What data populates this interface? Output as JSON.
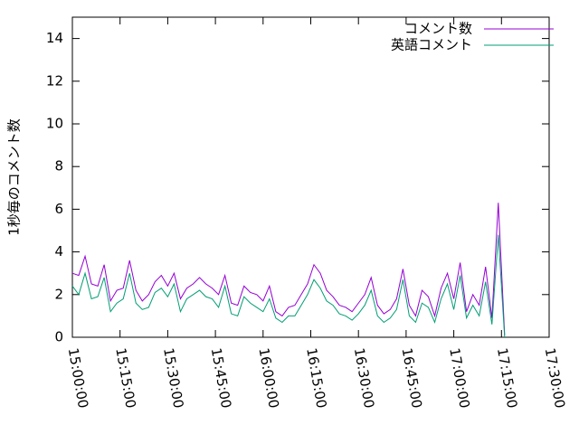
{
  "chart_data": {
    "type": "line",
    "ylabel": "1秒毎のコメント数",
    "x": [
      "15:00:00",
      "15:02:00",
      "15:04:00",
      "15:06:00",
      "15:08:00",
      "15:10:00",
      "15:12:00",
      "15:14:00",
      "15:16:00",
      "15:18:00",
      "15:20:00",
      "15:22:00",
      "15:24:00",
      "15:26:00",
      "15:28:00",
      "15:30:00",
      "15:32:00",
      "15:34:00",
      "15:36:00",
      "15:38:00",
      "15:40:00",
      "15:42:00",
      "15:44:00",
      "15:46:00",
      "15:48:00",
      "15:50:00",
      "15:52:00",
      "15:54:00",
      "15:56:00",
      "15:58:00",
      "16:00:00",
      "16:02:00",
      "16:04:00",
      "16:06:00",
      "16:08:00",
      "16:10:00",
      "16:12:00",
      "16:14:00",
      "16:16:00",
      "16:18:00",
      "16:20:00",
      "16:22:00",
      "16:24:00",
      "16:26:00",
      "16:28:00",
      "16:30:00",
      "16:32:00",
      "16:34:00",
      "16:36:00",
      "16:38:00",
      "16:40:00",
      "16:42:00",
      "16:44:00",
      "16:46:00",
      "16:48:00",
      "16:50:00",
      "16:52:00",
      "16:54:00",
      "16:56:00",
      "16:58:00",
      "17:00:00",
      "17:02:00",
      "17:04:00",
      "17:06:00",
      "17:08:00",
      "17:10:00",
      "17:12:00",
      "17:14:00",
      "17:16:00"
    ],
    "series": [
      {
        "name": "コメント数",
        "color": "#9400d3",
        "values": [
          3.0,
          2.9,
          3.8,
          2.5,
          2.4,
          3.4,
          1.7,
          2.2,
          2.3,
          3.6,
          2.2,
          1.7,
          2.0,
          2.6,
          2.9,
          2.4,
          3.0,
          1.8,
          2.3,
          2.5,
          2.8,
          2.5,
          2.3,
          2.0,
          2.9,
          1.6,
          1.5,
          2.4,
          2.1,
          2.0,
          1.7,
          2.4,
          1.2,
          1.0,
          1.4,
          1.5,
          2.0,
          2.5,
          3.4,
          3.0,
          2.2,
          1.9,
          1.5,
          1.4,
          1.2,
          1.6,
          2.0,
          2.8,
          1.5,
          1.1,
          1.3,
          1.8,
          3.2,
          1.5,
          1.0,
          2.2,
          1.9,
          1.0,
          2.3,
          3.0,
          1.8,
          3.5,
          1.2,
          2.0,
          1.5,
          3.3,
          0.9,
          6.3,
          0.1
        ]
      },
      {
        "name": "英語コメント",
        "color": "#009e73",
        "values": [
          2.4,
          2.0,
          3.0,
          1.8,
          1.9,
          2.8,
          1.2,
          1.6,
          1.8,
          3.0,
          1.6,
          1.3,
          1.4,
          2.1,
          2.3,
          1.9,
          2.5,
          1.2,
          1.8,
          2.0,
          2.2,
          1.9,
          1.8,
          1.4,
          2.4,
          1.1,
          1.0,
          1.9,
          1.6,
          1.4,
          1.2,
          1.8,
          0.9,
          0.7,
          1.0,
          1.0,
          1.5,
          2.0,
          2.7,
          2.3,
          1.7,
          1.5,
          1.1,
          1.0,
          0.8,
          1.1,
          1.5,
          2.2,
          1.0,
          0.7,
          0.9,
          1.3,
          2.7,
          1.0,
          0.7,
          1.6,
          1.4,
          0.7,
          1.8,
          2.5,
          1.3,
          2.9,
          0.9,
          1.5,
          1.0,
          2.6,
          0.6,
          4.8,
          0.0
        ]
      }
    ],
    "xlim": [
      "15:00:00",
      "17:30:00"
    ],
    "xticks": [
      "15:00:00",
      "15:15:00",
      "15:30:00",
      "15:45:00",
      "16:00:00",
      "16:15:00",
      "16:30:00",
      "16:45:00",
      "17:00:00",
      "17:15:00",
      "17:30:00"
    ],
    "ylim": [
      0,
      15
    ],
    "yticks": [
      0,
      2,
      4,
      6,
      8,
      10,
      12,
      14
    ],
    "legend": "top-right"
  }
}
